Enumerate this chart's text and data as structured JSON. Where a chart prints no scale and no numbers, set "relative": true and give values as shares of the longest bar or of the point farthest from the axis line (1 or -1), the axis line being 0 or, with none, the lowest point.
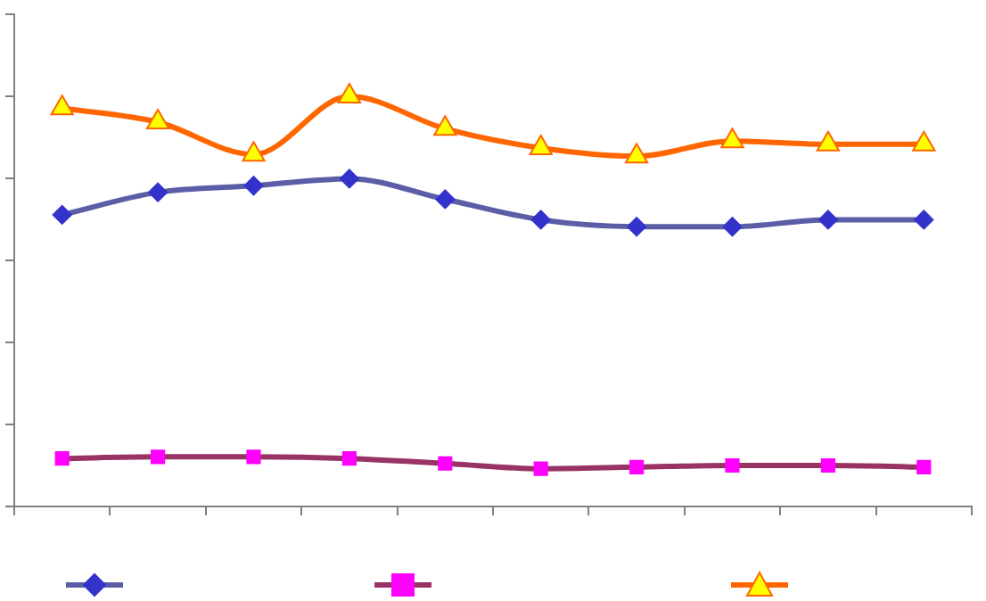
{
  "chart_data": {
    "type": "line",
    "relative": true,
    "categories": [
      null,
      null,
      null,
      null,
      null,
      null,
      null,
      null,
      null,
      null
    ],
    "series": [
      {
        "color": "#5b5ea6",
        "marker": "diamond",
        "values": [
          0.711,
          0.766,
          0.782,
          0.799,
          0.749,
          0.699,
          0.682,
          0.682,
          0.699,
          0.699
        ]
      },
      {
        "color": "#993366",
        "marker": "square",
        "values": [
          0.117,
          0.121,
          0.121,
          0.117,
          0.105,
          0.092,
          0.096,
          0.1,
          0.1,
          0.096
        ]
      },
      {
        "color": "#ff6600",
        "marker": "triangle",
        "values": [
          0.971,
          0.937,
          0.858,
          1,
          0.921,
          0.874,
          0.854,
          0.891,
          0.883,
          0.883
        ]
      }
    ],
    "tick_labels": false,
    "grid": false
  }
}
